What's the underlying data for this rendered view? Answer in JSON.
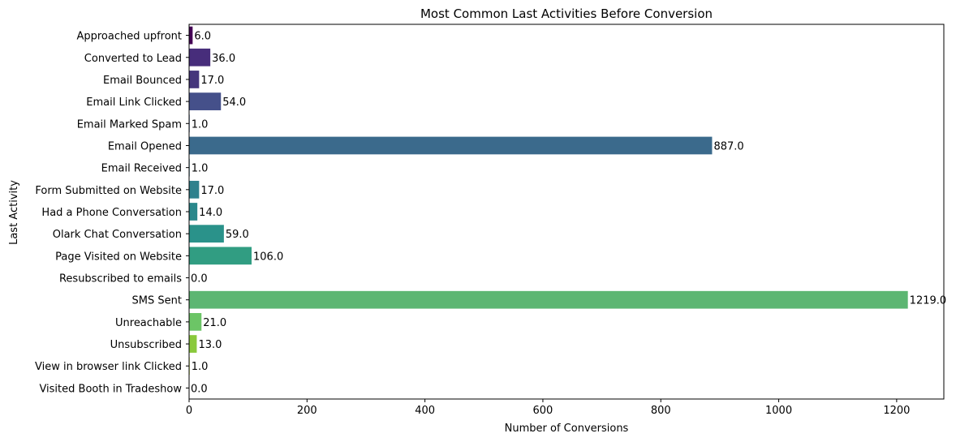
{
  "chart_data": {
    "type": "bar",
    "orientation": "horizontal",
    "title": "Most Common Last Activities Before Conversion",
    "xlabel": "Number of Conversions",
    "ylabel": "Last Activity",
    "xlim": [
      0,
      1280
    ],
    "xticks": [
      0,
      200,
      400,
      600,
      800,
      1000,
      1200
    ],
    "grid": false,
    "categories": [
      "Approached upfront",
      "Converted to Lead",
      "Email Bounced",
      "Email Link Clicked",
      "Email Marked Spam",
      "Email Opened",
      "Email Received",
      "Form Submitted on Website",
      "Had a Phone Conversation",
      "Olark Chat Conversation",
      "Page Visited on Website",
      "Resubscribed to emails",
      "SMS Sent",
      "Unreachable",
      "Unsubscribed",
      "View in browser link Clicked",
      "Visited Booth in Tradeshow"
    ],
    "values": [
      6,
      36,
      17,
      54,
      1,
      887,
      1,
      17,
      14,
      59,
      106,
      0,
      1219,
      21,
      13,
      1,
      0
    ],
    "value_labels": [
      "6.0",
      "36.0",
      "17.0",
      "54.0",
      "1.0",
      "887.0",
      "1.0",
      "17.0",
      "14.0",
      "59.0",
      "106.0",
      "0.0",
      "1219.0",
      "21.0",
      "13.0",
      "1.0",
      "0.0"
    ],
    "colors": [
      "#440154",
      "#472d7b",
      "#45357c",
      "#45508a",
      "#3f5f8e",
      "#3b6a8c",
      "#34728c",
      "#2e818d",
      "#2a888c",
      "#2a928a",
      "#319d82",
      "#35aa79",
      "#5cb672",
      "#6cc566",
      "#8ac93c",
      "#b8d92a",
      "#dde41e"
    ]
  }
}
